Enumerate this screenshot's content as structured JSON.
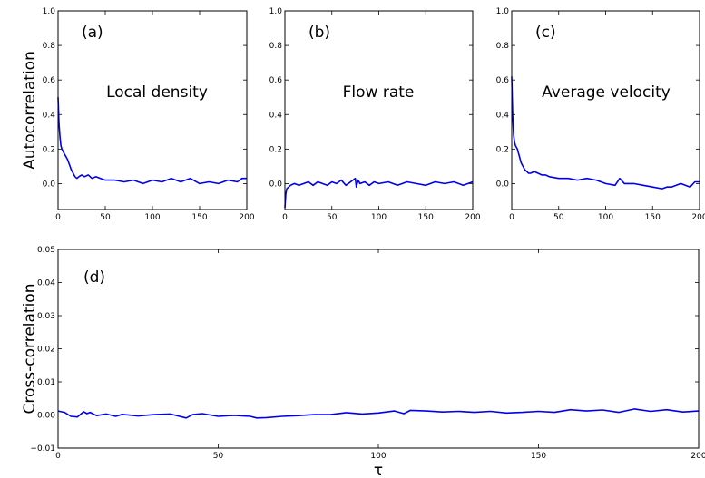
{
  "chart_data": [
    {
      "id": "a",
      "type": "line",
      "panel_label": "(a)",
      "title": "Local density",
      "ylabel": "Autocorrelation",
      "xlabel": "",
      "xlim": [
        0,
        200
      ],
      "ylim": [
        -0.15,
        1.0
      ],
      "xticks": [
        0,
        50,
        100,
        150,
        200
      ],
      "yticks": [
        0.0,
        0.2,
        0.4,
        0.6,
        0.8,
        1.0
      ],
      "series": [
        {
          "color": "#0000ee",
          "x": [
            0,
            1,
            2,
            3,
            4,
            5,
            6,
            8,
            10,
            12,
            14,
            16,
            18,
            20,
            22,
            25,
            28,
            32,
            36,
            40,
            45,
            50,
            60,
            70,
            80,
            90,
            100,
            110,
            120,
            130,
            140,
            150,
            160,
            170,
            180,
            190,
            195,
            200
          ],
          "y": [
            0.5,
            0.35,
            0.27,
            0.22,
            0.2,
            0.19,
            0.18,
            0.16,
            0.14,
            0.11,
            0.08,
            0.06,
            0.04,
            0.03,
            0.04,
            0.05,
            0.04,
            0.05,
            0.03,
            0.04,
            0.03,
            0.02,
            0.02,
            0.01,
            0.02,
            0.0,
            0.02,
            0.01,
            0.03,
            0.01,
            0.03,
            0.0,
            0.01,
            0.0,
            0.02,
            0.01,
            0.03,
            0.03
          ]
        }
      ]
    },
    {
      "id": "b",
      "type": "line",
      "panel_label": "(b)",
      "title": "Flow rate",
      "xlabel": "",
      "ylabel": "",
      "xlim": [
        0,
        200
      ],
      "ylim": [
        -0.15,
        1.0
      ],
      "xticks": [
        0,
        50,
        100,
        150,
        200
      ],
      "yticks": [
        0.0,
        0.2,
        0.4,
        0.6,
        0.8,
        1.0
      ],
      "series": [
        {
          "color": "#0000ee",
          "x": [
            0,
            1,
            2,
            4,
            6,
            10,
            15,
            20,
            25,
            30,
            35,
            40,
            45,
            50,
            55,
            60,
            65,
            70,
            75,
            76,
            78,
            80,
            85,
            90,
            95,
            100,
            110,
            120,
            130,
            140,
            150,
            160,
            170,
            180,
            190,
            200
          ],
          "y": [
            -0.14,
            -0.06,
            -0.03,
            -0.02,
            -0.01,
            0.0,
            -0.01,
            0.0,
            0.01,
            -0.01,
            0.01,
            0.0,
            -0.01,
            0.01,
            0.0,
            0.02,
            -0.01,
            0.01,
            0.03,
            -0.02,
            0.02,
            0.0,
            0.01,
            -0.01,
            0.01,
            0.0,
            0.01,
            -0.01,
            0.01,
            0.0,
            -0.01,
            0.01,
            0.0,
            0.01,
            -0.01,
            0.01
          ]
        }
      ]
    },
    {
      "id": "c",
      "type": "line",
      "panel_label": "(c)",
      "title": "Average velocity",
      "xlabel": "",
      "ylabel": "",
      "xlim": [
        0,
        200
      ],
      "ylim": [
        -0.15,
        1.0
      ],
      "xticks": [
        0,
        50,
        100,
        150,
        200
      ],
      "yticks": [
        0.0,
        0.2,
        0.4,
        0.6,
        0.8,
        1.0
      ],
      "series": [
        {
          "color": "#0000ee",
          "x": [
            0,
            1,
            2,
            3,
            4,
            6,
            8,
            10,
            12,
            14,
            16,
            18,
            20,
            24,
            28,
            32,
            36,
            40,
            50,
            60,
            70,
            80,
            90,
            100,
            110,
            115,
            120,
            130,
            140,
            150,
            160,
            165,
            170,
            180,
            190,
            195,
            200
          ],
          "y": [
            0.62,
            0.4,
            0.28,
            0.24,
            0.22,
            0.2,
            0.16,
            0.12,
            0.1,
            0.08,
            0.07,
            0.06,
            0.06,
            0.07,
            0.06,
            0.05,
            0.05,
            0.04,
            0.03,
            0.03,
            0.02,
            0.03,
            0.02,
            0.0,
            -0.01,
            0.03,
            0.0,
            0.0,
            -0.01,
            -0.02,
            -0.03,
            -0.02,
            -0.02,
            0.0,
            -0.02,
            0.01,
            0.01
          ]
        }
      ]
    },
    {
      "id": "d",
      "type": "line",
      "panel_label": "(d)",
      "title": "",
      "ylabel": "Cross-correlation",
      "xlabel": "τ",
      "xlim": [
        0,
        200
      ],
      "ylim": [
        -0.01,
        0.05
      ],
      "xticks": [
        0,
        50,
        100,
        150,
        200
      ],
      "yticks": [
        -0.01,
        0.0,
        0.01,
        0.02,
        0.03,
        0.04,
        0.05
      ],
      "ytick_labels": [
        "−0.01",
        "0.00",
        "0.01",
        "0.02",
        "0.03",
        "0.04",
        "0.05"
      ],
      "series": [
        {
          "color": "#0000ee",
          "x": [
            0,
            2,
            4,
            6,
            8,
            9,
            10,
            12,
            15,
            18,
            20,
            25,
            30,
            35,
            40,
            42,
            45,
            50,
            55,
            60,
            62,
            65,
            70,
            75,
            80,
            85,
            90,
            95,
            100,
            105,
            108,
            110,
            115,
            120,
            125,
            130,
            135,
            140,
            145,
            150,
            155,
            160,
            165,
            170,
            175,
            180,
            185,
            190,
            195,
            200
          ],
          "y": [
            0.0012,
            0.0008,
            -0.0004,
            -0.0006,
            0.001,
            0.0004,
            0.0008,
            -0.0002,
            0.0003,
            -0.0004,
            0.0002,
            -0.0003,
            0.0001,
            0.0003,
            -0.0009,
            0.0001,
            0.0004,
            -0.0004,
            -0.0001,
            -0.0004,
            -0.0009,
            -0.0008,
            -0.0004,
            -0.0002,
            0.0001,
            0.0001,
            0.0007,
            0.0003,
            0.0006,
            0.0012,
            0.0004,
            0.0014,
            0.0012,
            0.0009,
            0.0011,
            0.0008,
            0.0011,
            0.0006,
            0.0008,
            0.0011,
            0.0008,
            0.0016,
            0.0012,
            0.0015,
            0.0008,
            0.0018,
            0.0011,
            0.0016,
            0.0009,
            0.0012
          ]
        }
      ]
    }
  ]
}
